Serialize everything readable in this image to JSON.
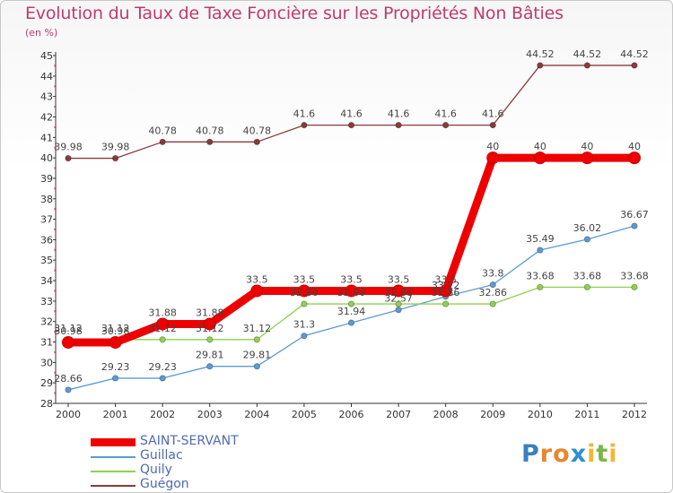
{
  "title": "Evolution du Taux de Taxe Foncière sur les Propriétés Non Bâties",
  "unit": "(en %)",
  "logo": {
    "letters": [
      "P",
      "r",
      "o",
      "x",
      "i",
      "t",
      "i"
    ],
    "colors": [
      "#3a7fc0",
      "#e8862e",
      "#e8862e",
      "#2e8fd0",
      "#f2b636",
      "#7ab648",
      "#f2b636"
    ]
  },
  "chart_data": {
    "type": "line",
    "title": "Evolution du Taux de Taxe Foncière sur les Propriétés Non Bâties",
    "ylabel": "(en %)",
    "xlabel": "",
    "ylim": [
      28,
      45
    ],
    "yticks": [
      "28",
      "29",
      "30",
      "31",
      "32",
      "33",
      "34",
      "35",
      "36",
      "37",
      "38",
      "39",
      "40",
      "41",
      "42",
      "43",
      "44",
      "45"
    ],
    "categories": [
      "2000",
      "2001",
      "2002",
      "2003",
      "2004",
      "2005",
      "2006",
      "2007",
      "2008",
      "2009",
      "2010",
      "2011",
      "2012"
    ],
    "legend_position": "bottom-left",
    "series": [
      {
        "name": "SAINT-SERVANT",
        "color": "#ee0000",
        "emphasis": true,
        "values": [
          30.98,
          30.98,
          31.88,
          31.88,
          33.5,
          33.5,
          33.5,
          33.5,
          33.5,
          40,
          40,
          40,
          40
        ],
        "labels": [
          "30.98",
          "30.98",
          "31.88",
          "31.88",
          "33.5",
          "33.5",
          "33.5",
          "33.5",
          "33.5",
          "40",
          "40",
          "40",
          "40"
        ]
      },
      {
        "name": "Guillac",
        "color": "#5b9bd5",
        "emphasis": false,
        "values": [
          28.66,
          29.23,
          29.23,
          29.81,
          29.81,
          31.3,
          31.94,
          32.57,
          33.22,
          33.8,
          35.49,
          36.02,
          36.67
        ],
        "labels": [
          "28.66",
          "29.23",
          "29.23",
          "29.81",
          "29.81",
          "31.3",
          "31.94",
          "32.57",
          "33.22",
          "33.8",
          "35.49",
          "36.02",
          "36.67"
        ]
      },
      {
        "name": "Quily",
        "color": "#8fd14f",
        "emphasis": false,
        "values": [
          31.12,
          31.12,
          31.12,
          31.12,
          31.12,
          32.86,
          32.86,
          32.86,
          32.86,
          32.86,
          33.68,
          33.68,
          33.68
        ],
        "labels": [
          "31.12",
          "31.12",
          "31.12",
          "31.12",
          "31.12",
          "32.86",
          "32.86",
          "32.86",
          "32.86",
          "32.86",
          "33.68",
          "33.68",
          "33.68"
        ]
      },
      {
        "name": "Guégon",
        "color": "#8b3a3a",
        "emphasis": false,
        "values": [
          39.98,
          39.98,
          40.78,
          40.78,
          40.78,
          41.6,
          41.6,
          41.6,
          41.6,
          41.6,
          44.52,
          44.52,
          44.52
        ],
        "labels": [
          "39.98",
          "39.98",
          "40.78",
          "40.78",
          "40.78",
          "41.6",
          "41.6",
          "41.6",
          "41.6",
          "41.6",
          "44.52",
          "44.52",
          "44.52"
        ]
      }
    ]
  }
}
